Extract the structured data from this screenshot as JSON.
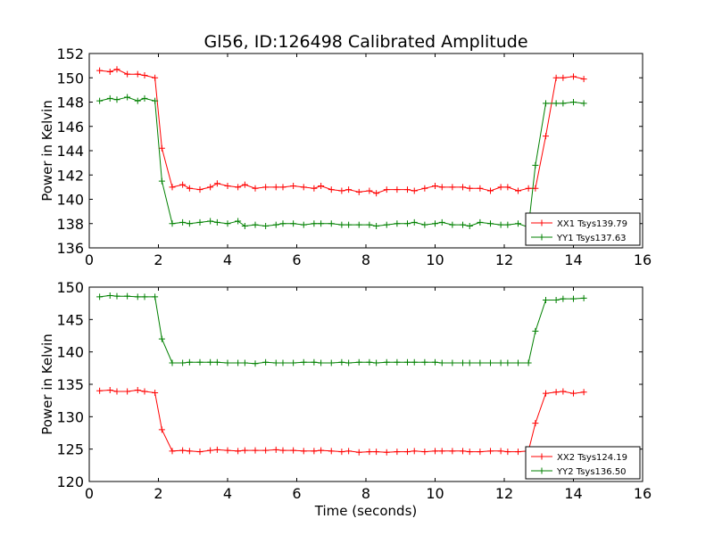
{
  "chart_data": [
    {
      "type": "line",
      "title": "Gl56, ID:126498 Calibrated Amplitude",
      "xlabel": "",
      "ylabel": "Power in Kelvin",
      "xlim": [
        0,
        16
      ],
      "ylim": [
        136,
        152
      ],
      "xticks": [
        0,
        2,
        4,
        6,
        8,
        10,
        12,
        14,
        16
      ],
      "yticks": [
        136,
        138,
        140,
        142,
        144,
        146,
        148,
        150,
        152
      ],
      "grid": false,
      "legend": "lower-right",
      "x": [
        0.3,
        0.6,
        0.8,
        1.1,
        1.4,
        1.6,
        1.9,
        2.1,
        2.4,
        2.7,
        2.9,
        3.2,
        3.5,
        3.7,
        4.0,
        4.3,
        4.5,
        4.8,
        5.1,
        5.4,
        5.6,
        5.9,
        6.2,
        6.5,
        6.7,
        7.0,
        7.3,
        7.5,
        7.8,
        8.1,
        8.3,
        8.6,
        8.9,
        9.2,
        9.4,
        9.7,
        10.0,
        10.2,
        10.5,
        10.8,
        11.0,
        11.3,
        11.6,
        11.9,
        12.1,
        12.4,
        12.7,
        12.9,
        13.2,
        13.5,
        13.7,
        14.0,
        14.3
      ],
      "series": [
        {
          "name": "XX1 Tsys139.79",
          "color": "#ff0000",
          "values": [
            150.6,
            150.5,
            150.7,
            150.3,
            150.3,
            150.2,
            150.0,
            144.2,
            141.0,
            141.2,
            140.9,
            140.8,
            141.0,
            141.3,
            141.1,
            141.0,
            141.2,
            140.9,
            141.0,
            141.0,
            141.0,
            141.1,
            141.0,
            140.9,
            141.1,
            140.8,
            140.7,
            140.8,
            140.6,
            140.7,
            140.5,
            140.8,
            140.8,
            140.8,
            140.7,
            140.9,
            141.1,
            141.0,
            141.0,
            141.0,
            140.9,
            140.9,
            140.7,
            141.0,
            141.0,
            140.7,
            140.9,
            140.9,
            145.2,
            150.0,
            150.0,
            150.1,
            149.9
          ]
        },
        {
          "name": "YY1 Tsys137.63",
          "color": "#008000",
          "values": [
            148.1,
            148.3,
            148.2,
            148.4,
            148.1,
            148.3,
            148.1,
            141.5,
            138.0,
            138.1,
            138.0,
            138.1,
            138.2,
            138.1,
            138.0,
            138.2,
            137.8,
            137.9,
            137.8,
            137.9,
            138.0,
            138.0,
            137.9,
            138.0,
            138.0,
            138.0,
            137.9,
            137.9,
            137.9,
            137.9,
            137.8,
            137.9,
            138.0,
            138.0,
            138.1,
            137.9,
            138.0,
            138.1,
            137.9,
            137.9,
            137.8,
            138.1,
            138.0,
            137.9,
            137.9,
            138.0,
            137.7,
            142.8,
            147.9,
            147.9,
            147.9,
            148.0,
            147.9
          ]
        }
      ]
    },
    {
      "type": "line",
      "title": "",
      "xlabel": "Time (seconds)",
      "ylabel": "Power in Kelvin",
      "xlim": [
        0,
        16
      ],
      "ylim": [
        120,
        150
      ],
      "xticks": [
        0,
        2,
        4,
        6,
        8,
        10,
        12,
        14,
        16
      ],
      "yticks": [
        120,
        125,
        130,
        135,
        140,
        145,
        150
      ],
      "grid": false,
      "legend": "lower-right",
      "x": [
        0.3,
        0.6,
        0.8,
        1.1,
        1.4,
        1.6,
        1.9,
        2.1,
        2.4,
        2.7,
        2.9,
        3.2,
        3.5,
        3.7,
        4.0,
        4.3,
        4.5,
        4.8,
        5.1,
        5.4,
        5.6,
        5.9,
        6.2,
        6.5,
        6.7,
        7.0,
        7.3,
        7.5,
        7.8,
        8.1,
        8.3,
        8.6,
        8.9,
        9.2,
        9.4,
        9.7,
        10.0,
        10.2,
        10.5,
        10.8,
        11.0,
        11.3,
        11.6,
        11.9,
        12.1,
        12.4,
        12.7,
        12.9,
        13.2,
        13.5,
        13.7,
        14.0,
        14.3
      ],
      "series": [
        {
          "name": "XX2 Tsys124.19",
          "color": "#ff0000",
          "values": [
            134.0,
            134.1,
            133.9,
            133.9,
            134.1,
            133.9,
            133.7,
            128.0,
            124.7,
            124.8,
            124.7,
            124.6,
            124.8,
            124.9,
            124.8,
            124.7,
            124.8,
            124.8,
            124.8,
            124.9,
            124.8,
            124.8,
            124.7,
            124.7,
            124.8,
            124.7,
            124.6,
            124.7,
            124.5,
            124.6,
            124.6,
            124.5,
            124.6,
            124.6,
            124.7,
            124.6,
            124.7,
            124.7,
            124.7,
            124.7,
            124.6,
            124.6,
            124.7,
            124.7,
            124.6,
            124.6,
            124.7,
            129.0,
            133.6,
            133.8,
            133.9,
            133.6,
            133.8
          ]
        },
        {
          "name": "YY2 Tsys136.50",
          "color": "#008000",
          "values": [
            148.5,
            148.7,
            148.6,
            148.6,
            148.5,
            148.5,
            148.5,
            142.0,
            138.3,
            138.3,
            138.4,
            138.4,
            138.4,
            138.4,
            138.3,
            138.3,
            138.3,
            138.2,
            138.4,
            138.3,
            138.3,
            138.3,
            138.4,
            138.4,
            138.3,
            138.3,
            138.4,
            138.3,
            138.4,
            138.4,
            138.3,
            138.4,
            138.4,
            138.4,
            138.4,
            138.4,
            138.4,
            138.3,
            138.3,
            138.3,
            138.3,
            138.3,
            138.3,
            138.3,
            138.3,
            138.3,
            138.3,
            143.2,
            148.0,
            148.0,
            148.2,
            148.2,
            148.3
          ]
        }
      ]
    }
  ]
}
